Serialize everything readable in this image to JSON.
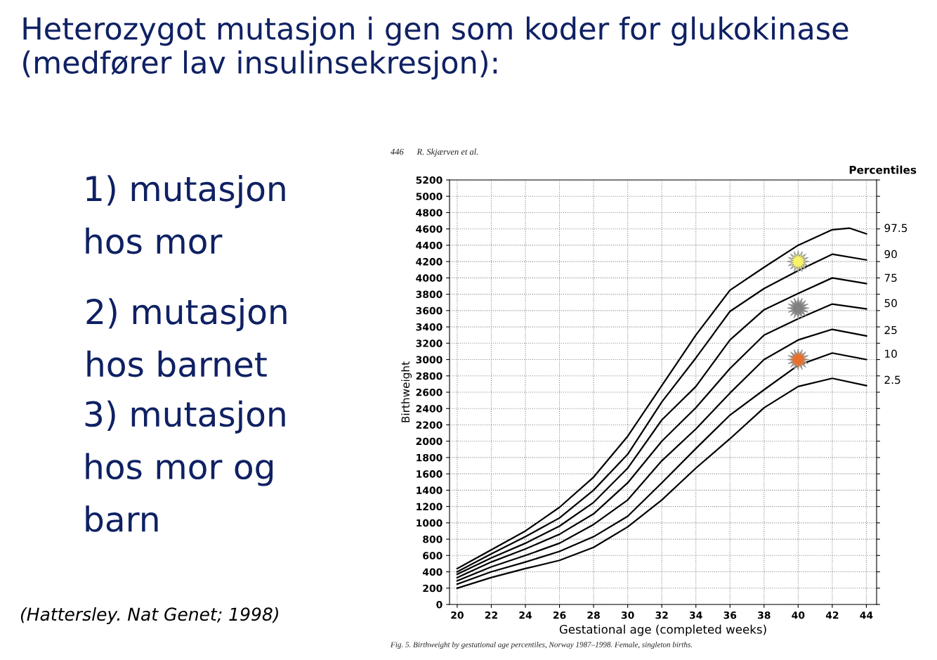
{
  "chart_data": {
    "type": "line",
    "title": "Heterozygot mutasjon i gen som koder for glukokinase (medfører lav insulinsekresjon):",
    "xlabel": "Gestational age (completed weeks)",
    "ylabel": "Birthweight",
    "x": [
      20,
      22,
      24,
      26,
      28,
      30,
      32,
      34,
      36,
      38,
      40,
      42,
      44
    ],
    "series": [
      {
        "name": "97.5",
        "color": "#000000",
        "x": [
          20,
          22,
          24,
          26,
          28,
          30,
          32,
          34,
          36,
          38,
          40,
          42,
          43,
          44
        ],
        "values": [
          440,
          670,
          900,
          1190,
          1560,
          2060,
          2680,
          3300,
          3850,
          4130,
          4400,
          4590,
          4610,
          4540
        ]
      },
      {
        "name": "90",
        "color": "#000000",
        "values": [
          400,
          620,
          830,
          1060,
          1400,
          1840,
          2480,
          3020,
          3590,
          3870,
          4090,
          4290,
          4220
        ]
      },
      {
        "name": "75",
        "color": "#000000",
        "values": [
          370,
          570,
          750,
          960,
          1250,
          1670,
          2260,
          2670,
          3240,
          3610,
          3810,
          4000,
          3930
        ]
      },
      {
        "name": "50",
        "color": "#000000",
        "values": [
          330,
          520,
          680,
          860,
          1110,
          1490,
          2000,
          2410,
          2890,
          3300,
          3500,
          3680,
          3620
        ]
      },
      {
        "name": "25",
        "color": "#000000",
        "values": [
          290,
          460,
          600,
          750,
          980,
          1280,
          1760,
          2150,
          2590,
          3000,
          3240,
          3370,
          3290
        ]
      },
      {
        "name": "10",
        "color": "#000000",
        "values": [
          250,
          400,
          520,
          650,
          830,
          1080,
          1490,
          1910,
          2320,
          2630,
          2930,
          3080,
          3000
        ]
      },
      {
        "name": "2.5",
        "color": "#000000",
        "values": [
          200,
          330,
          440,
          540,
          700,
          950,
          1280,
          1670,
          2030,
          2410,
          2670,
          2770,
          2680
        ]
      },
      {
        "type": "scatter",
        "marker": "star",
        "x": [
          40
        ],
        "values": [
          4200
        ],
        "color": "#f8f36a"
      },
      {
        "type": "scatter",
        "marker": "star",
        "x": [
          40
        ],
        "values": [
          3630
        ],
        "color": "#808080"
      },
      {
        "type": "scatter",
        "marker": "star",
        "x": [
          40
        ],
        "values": [
          3000
        ],
        "color": "#e8702c"
      }
    ],
    "xlim": [
      19.55,
      44.6
    ],
    "ylim": [
      0,
      5200
    ],
    "xticks": [
      20,
      22,
      24,
      26,
      28,
      30,
      32,
      34,
      36,
      38,
      40,
      42,
      44
    ],
    "yticks": [
      0,
      200,
      400,
      600,
      800,
      1000,
      1200,
      1400,
      1600,
      1800,
      2000,
      2200,
      2400,
      2600,
      2800,
      3000,
      3200,
      3400,
      3600,
      3800,
      4000,
      4200,
      4400,
      4600,
      4800,
      5000,
      5200
    ],
    "grid": true,
    "legend": "right",
    "legend_title": "Percentiles",
    "marker": "none",
    "line_style": "solid",
    "annotations": [
      "446      R. Skjærven et al.",
      "Fig. 5. Birthweight by gestational age percentiles, Norway 1987–1998. Female, singleton births.",
      "1) mutasjon\nhos mor",
      "2) mutasjon\nhos barnet",
      "3) mutasjon\nhos mor og\nbarn",
      "(Hattersley. Nat Genet; 1998)"
    ]
  }
}
